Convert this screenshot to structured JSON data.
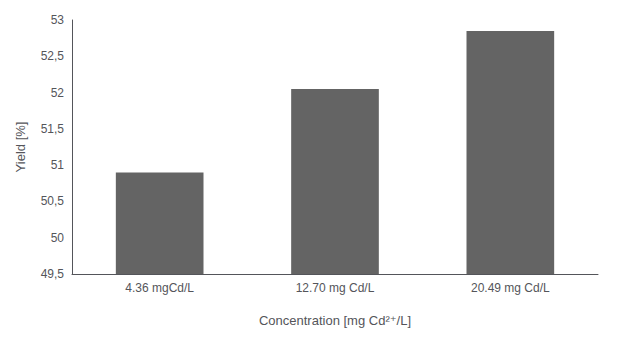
{
  "chart_data": {
    "type": "bar",
    "categories": [
      "4.36 mgCd/L",
      "12.70 mg Cd/L",
      "20.49 mg Cd/L"
    ],
    "values": [
      50.9,
      52.05,
      52.85
    ],
    "color": "#646464",
    "xlabel": "Concentration [mg Cd²⁺/L]",
    "ylabel": "Yield [%]",
    "ylim": [
      49.5,
      53.0
    ],
    "yticks": [
      {
        "value": 49.5,
        "label": "49,5"
      },
      50,
      {
        "value": 50.5,
        "label": "50,5"
      },
      51,
      {
        "value": 51.5,
        "label": "51,5"
      },
      52,
      {
        "value": 52.5,
        "label": "52,5"
      },
      53
    ],
    "grid": false
  }
}
